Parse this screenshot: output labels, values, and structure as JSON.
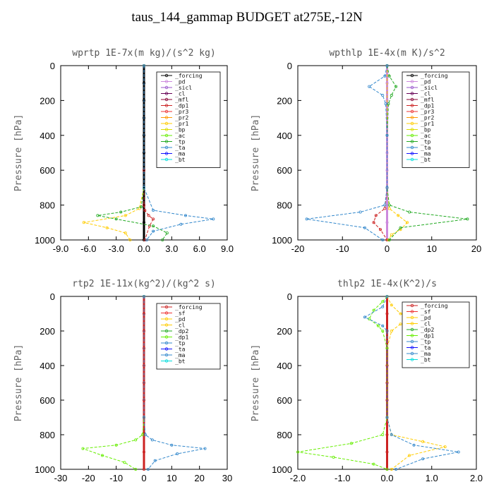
{
  "title": "taus_144_gammap  BUDGET at275E,-12N",
  "chart_data": [
    {
      "type": "line",
      "title": "wprtp  1E-7x(m kg)/(s^2 kg)",
      "ylabel": "Pressure [hPa]",
      "xlim": [
        -9,
        9
      ],
      "ylim": [
        1000,
        0
      ],
      "xticks": [
        "-9.0",
        "-6.0",
        "-3.0",
        "0.0",
        "3.0",
        "6.0",
        "9.0"
      ],
      "xtick_values": [
        -9,
        -6,
        -3,
        0,
        3,
        6,
        9
      ],
      "yticks": [
        "0",
        "200",
        "400",
        "600",
        "800",
        "1000"
      ],
      "ytick_values": [
        0,
        200,
        400,
        600,
        800,
        1000
      ],
      "legend": [
        "_forcing",
        "_pd",
        "_sicl",
        "_cl",
        "_mfl",
        "_dp1",
        "_pr3",
        "_pr2",
        "_pr1",
        "_bp",
        "_ac",
        "_tp",
        "_ta",
        "_ma",
        "_bt"
      ],
      "legend_colors": [
        "#000000",
        "#cc88dd",
        "#9955cc",
        "#660055",
        "#880033",
        "#cc2222",
        "#ee3333",
        "#ff9900",
        "#ffcc00",
        "#dddd00",
        "#66ee00",
        "#22aa22",
        "#3388cc",
        "#1111ff",
        "#00dddd"
      ],
      "series": [
        {
          "name": "_forcing",
          "color": "#000000",
          "x": [
            0,
            0,
            0,
            0,
            0,
            0,
            0,
            0,
            0,
            0,
            0
          ],
          "y": [
            0,
            100,
            200,
            300,
            400,
            500,
            600,
            700,
            800,
            900,
            1000
          ]
        },
        {
          "name": "_dp1",
          "color": "#cc2222",
          "x": [
            0,
            0,
            0,
            0.1,
            0.5,
            1.0,
            0.6,
            0.1
          ],
          "y": [
            0,
            600,
            800,
            830,
            860,
            880,
            920,
            1000
          ]
        },
        {
          "name": "_pr1",
          "color": "#ffcc00",
          "x": [
            0,
            0,
            -0.5,
            -2.0,
            -6.5,
            -4.0,
            -2.0,
            -1.5
          ],
          "y": [
            0,
            700,
            820,
            860,
            900,
            930,
            960,
            1000
          ]
        },
        {
          "name": "_ac",
          "color": "#22aa22",
          "x": [
            0,
            0,
            -0.3,
            -2.5,
            -5.0,
            -3.0,
            1.0,
            2.5,
            2.0
          ],
          "y": [
            0,
            700,
            810,
            840,
            860,
            880,
            920,
            960,
            1000
          ]
        },
        {
          "name": "_tp",
          "color": "#3388cc",
          "x": [
            0,
            0,
            1.0,
            4.5,
            7.5,
            4.0,
            1.0,
            0.3
          ],
          "y": [
            0,
            700,
            830,
            860,
            880,
            910,
            950,
            1000
          ]
        }
      ]
    },
    {
      "type": "line",
      "title": "wpthlp  1E-4x(m K)/s^2",
      "ylabel": "Pressure [hPa]",
      "xlim": [
        -20,
        20
      ],
      "ylim": [
        1000,
        0
      ],
      "xticks": [
        "-20",
        "-10",
        "0",
        "10",
        "20"
      ],
      "xtick_values": [
        -20,
        -10,
        0,
        10,
        20
      ],
      "yticks": [
        "0",
        "200",
        "400",
        "600",
        "800",
        "1000"
      ],
      "ytick_values": [
        0,
        200,
        400,
        600,
        800,
        1000
      ],
      "legend": [
        "_forcing",
        "_pd",
        "_sicl",
        "_cl",
        "_mfl",
        "_dp1",
        "_pr3",
        "_pr2",
        "_pr1",
        "_bp",
        "_ac",
        "_tp",
        "_ta",
        "_ma",
        "_bt"
      ],
      "legend_colors": [
        "#000000",
        "#cc88dd",
        "#9955cc",
        "#660055",
        "#880033",
        "#cc2222",
        "#ee3333",
        "#ff9900",
        "#ffcc00",
        "#dddd00",
        "#66ee00",
        "#22aa22",
        "#3388cc",
        "#1111ff",
        "#00dddd"
      ],
      "series": [
        {
          "name": "_forcing",
          "color": "#cc88dd",
          "x": [
            0,
            0,
            0,
            0,
            0,
            0,
            0,
            0,
            0,
            0,
            0
          ],
          "y": [
            0,
            100,
            200,
            300,
            400,
            500,
            600,
            700,
            800,
            900,
            1000
          ]
        },
        {
          "name": "_dp1",
          "color": "#cc2222",
          "x": [
            0,
            0,
            -0.5,
            -2.5,
            -3.0,
            -1.5,
            0
          ],
          "y": [
            0,
            700,
            820,
            860,
            900,
            940,
            1000
          ]
        },
        {
          "name": "_pr1",
          "color": "#ffcc00",
          "x": [
            0,
            0,
            0.5,
            2.5,
            4.5,
            3.0,
            1.0,
            0.3
          ],
          "y": [
            0,
            700,
            820,
            860,
            900,
            940,
            970,
            1000
          ]
        },
        {
          "name": "_ac",
          "color": "#22aa22",
          "x": [
            0,
            0.5,
            2.0,
            1.0,
            0.3,
            0,
            0,
            0.5,
            5.0,
            18.0,
            3.0,
            0.5
          ],
          "y": [
            0,
            60,
            120,
            170,
            220,
            400,
            700,
            800,
            840,
            880,
            930,
            1000
          ]
        },
        {
          "name": "_tp",
          "color": "#3388cc",
          "x": [
            0,
            -0.5,
            -4.0,
            -1.0,
            -0.3,
            0,
            0,
            -0.5,
            -6.0,
            -18.0,
            -5.0,
            -1.0
          ],
          "y": [
            0,
            60,
            120,
            170,
            220,
            400,
            700,
            800,
            840,
            880,
            930,
            1000
          ]
        }
      ]
    },
    {
      "type": "line",
      "title": "rtp2  1E-11x(kg^2)/(kg^2 s)",
      "ylabel": "Pressure [hPa]",
      "xlim": [
        -30,
        30
      ],
      "ylim": [
        1000,
        0
      ],
      "xticks": [
        "-30",
        "-20",
        "-10",
        "0",
        "10",
        "20",
        "30"
      ],
      "xtick_values": [
        -30,
        -20,
        -10,
        0,
        10,
        20,
        30
      ],
      "yticks": [
        "0",
        "200",
        "400",
        "600",
        "800",
        "1000"
      ],
      "ytick_values": [
        0,
        200,
        400,
        600,
        800,
        1000
      ],
      "legend": [
        "_forcing",
        "_sf",
        "_pd",
        "_cl",
        "_dp2",
        "_dp1",
        "_tp",
        "_ta",
        "_ma",
        "_bt"
      ],
      "legend_colors": [
        "#cc2222",
        "#ee3333",
        "#ffcc00",
        "#ffcc00",
        "#22aa22",
        "#66ee00",
        "#3388cc",
        "#1111ff",
        "#3388cc",
        "#00dddd"
      ],
      "series": [
        {
          "name": "_forcing",
          "color": "#cc2222",
          "x": [
            0,
            0,
            0,
            0,
            0,
            0,
            0,
            0,
            0,
            0,
            0
          ],
          "y": [
            0,
            100,
            200,
            300,
            400,
            500,
            600,
            700,
            800,
            900,
            1000
          ]
        },
        {
          "name": "_dp1",
          "color": "#66ee00",
          "x": [
            0,
            0,
            -0.5,
            -3.0,
            -10.0,
            -22.0,
            -15.0,
            -7.0,
            -3.0
          ],
          "y": [
            0,
            700,
            800,
            830,
            860,
            880,
            920,
            960,
            1000
          ]
        },
        {
          "name": "_tp",
          "color": "#3388cc",
          "x": [
            0,
            0,
            0.5,
            3.0,
            10.0,
            22.0,
            12.0,
            4.0,
            1.5
          ],
          "y": [
            0,
            700,
            800,
            830,
            860,
            880,
            910,
            950,
            1000
          ]
        }
      ]
    },
    {
      "type": "line",
      "title": "thlp2  1E-4x(K^2)/s",
      "ylabel": "Pressure [hPa]",
      "xlim": [
        -2,
        2
      ],
      "ylim": [
        1000,
        0
      ],
      "xticks": [
        "-2.0",
        "-1.0",
        "0.0",
        "1.0",
        "2.0"
      ],
      "xtick_values": [
        -2,
        -1,
        0,
        1,
        2
      ],
      "yticks": [
        "0",
        "200",
        "400",
        "600",
        "800",
        "1000"
      ],
      "ytick_values": [
        0,
        200,
        400,
        600,
        800,
        1000
      ],
      "legend": [
        "_forcing",
        "_sf",
        "_pd",
        "_cl",
        "_dp2",
        "_dp1",
        "_tp",
        "_ta",
        "_ma",
        "_bt"
      ],
      "legend_colors": [
        "#cc2222",
        "#ee3333",
        "#ffcc00",
        "#ffcc00",
        "#22aa22",
        "#66ee00",
        "#3388cc",
        "#1111ff",
        "#3388cc",
        "#00dddd"
      ],
      "series": [
        {
          "name": "_forcing",
          "color": "#cc2222",
          "x": [
            0,
            0,
            0,
            0,
            0,
            0,
            0,
            0,
            0,
            0,
            0
          ],
          "y": [
            0,
            100,
            200,
            300,
            400,
            500,
            600,
            700,
            800,
            900,
            1000
          ]
        },
        {
          "name": "_pd",
          "color": "#ffcc00",
          "x": [
            0,
            0.1,
            0.3,
            0.6,
            0.3,
            0.1,
            0,
            0,
            0.1,
            0.8,
            1.3,
            0.5,
            0.1
          ],
          "y": [
            0,
            50,
            100,
            130,
            160,
            200,
            300,
            700,
            800,
            840,
            870,
            920,
            1000
          ]
        },
        {
          "name": "_dp1",
          "color": "#66ee00",
          "x": [
            0,
            -0.1,
            -0.3,
            -0.4,
            -0.2,
            -0.1,
            0,
            0,
            -0.1,
            -0.8,
            -2.0,
            -1.2,
            -0.3,
            0
          ],
          "y": [
            0,
            30,
            80,
            130,
            170,
            200,
            300,
            700,
            800,
            850,
            900,
            930,
            970,
            1000
          ]
        },
        {
          "name": "_tp",
          "color": "#3388cc",
          "x": [
            0,
            -0.1,
            -0.5,
            -0.1,
            0,
            0,
            0.1,
            0.6,
            1.6,
            0.8,
            0.2
          ],
          "y": [
            0,
            60,
            120,
            170,
            200,
            700,
            800,
            860,
            900,
            940,
            1000
          ]
        }
      ]
    }
  ]
}
